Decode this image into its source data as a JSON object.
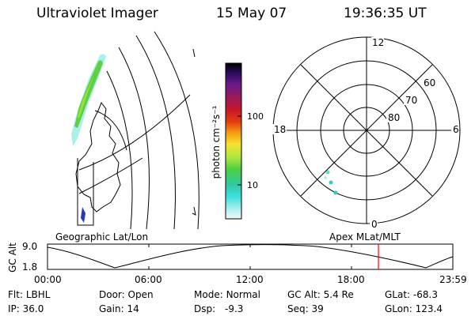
{
  "header": {
    "instrument": "Ultraviolet Imager",
    "date": "15 May 07",
    "time": "19:36:35 UT"
  },
  "geo_panel": {
    "label": "Geographic Lat/Lon"
  },
  "colorbar": {
    "axis_label": "photon cm⁻²s⁻¹",
    "ticks": [
      "100",
      "10"
    ],
    "log_scale": true,
    "colors": [
      "#000000",
      "#1a0a4a",
      "#4a1a8a",
      "#8a1a6a",
      "#b0103a",
      "#d82020",
      "#ee5010",
      "#f59a10",
      "#f5d020",
      "#e8f040",
      "#a8e840",
      "#50d040",
      "#30c890",
      "#30d8d0",
      "#70e8e8",
      "#c8f0f0",
      "#ffffff"
    ]
  },
  "polar": {
    "mlt_labels": [
      "12",
      "18",
      "6",
      "0"
    ],
    "lat_labels": [
      "60",
      "70",
      "80"
    ],
    "label": "Apex MLat/MLT"
  },
  "orbit": {
    "ylabel": "GC Alt",
    "y_ticks": [
      "9.0",
      "1.8"
    ],
    "x_ticks": [
      "00:00",
      "06:00",
      "12:00",
      "18:00",
      "23:59"
    ],
    "current_time_marker": "19:36",
    "marker_color": "#ff0000"
  },
  "status": {
    "col1": [
      {
        "label": "Flt:",
        "value": "LBHL"
      },
      {
        "label": "IP:",
        "value": "36.0"
      }
    ],
    "col2": [
      {
        "label": "Door:",
        "value": "Open"
      },
      {
        "label": "Gain:",
        "value": "14"
      }
    ],
    "col3": [
      {
        "label": "Mode:",
        "value": "Normal"
      },
      {
        "label": "Dsp:",
        "value": "-9.3"
      }
    ],
    "col4": [
      {
        "label": "GC Alt:",
        "value": "5.4 Re"
      },
      {
        "label": "Seq:",
        "value": "39"
      }
    ],
    "col5": [
      {
        "label": "GLat:",
        "value": "-68.3"
      },
      {
        "label": "GLon:",
        "value": "123.4"
      }
    ]
  }
}
